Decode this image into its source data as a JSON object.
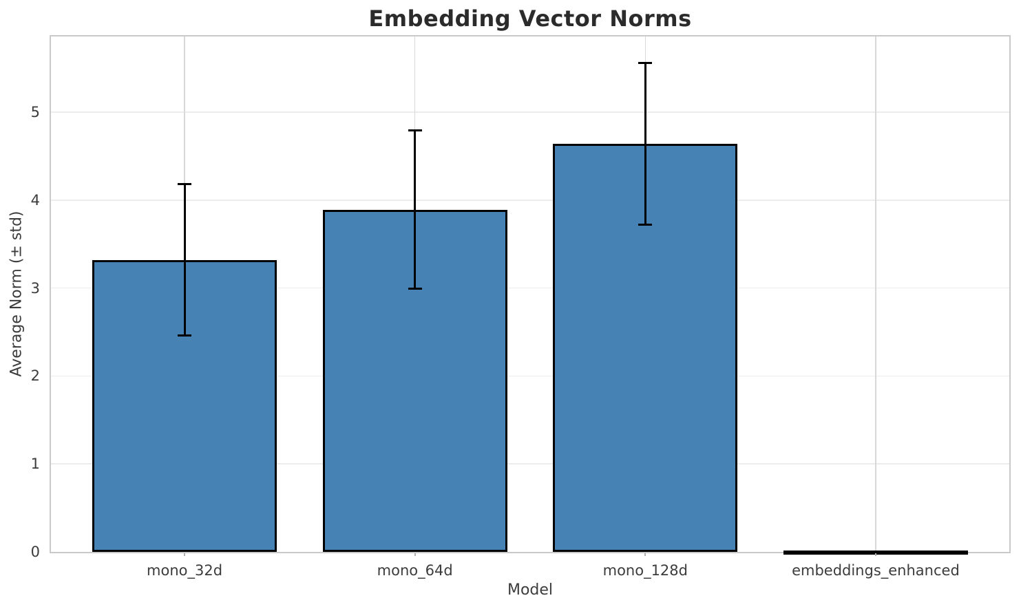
{
  "chart_data": {
    "type": "bar",
    "title": "Embedding Vector Norms",
    "xlabel": "Model",
    "ylabel": "Average Norm (± std)",
    "categories": [
      "mono_32d",
      "mono_64d",
      "mono_128d",
      "embeddings_enhanced"
    ],
    "values": [
      3.32,
      3.89,
      4.64,
      0.005
    ],
    "errors": [
      0.86,
      0.9,
      0.92,
      0.001
    ],
    "error_style": "plus-minus-std-with-caps",
    "yticks": [
      "0",
      "1",
      "2",
      "3",
      "4",
      "5"
    ],
    "ylim": [
      0,
      5.86
    ],
    "grid": true,
    "legend": "none",
    "bar_color": "#4682b4",
    "bar_edge_color": "#000000",
    "error_color": "#000000",
    "hgrid_color": "#ececec",
    "vgrid_color": "#d8d8d8",
    "spine_color": "#c9c9c9",
    "title_color": "#2b2b2b",
    "tick_color": "#3c3c3c"
  }
}
